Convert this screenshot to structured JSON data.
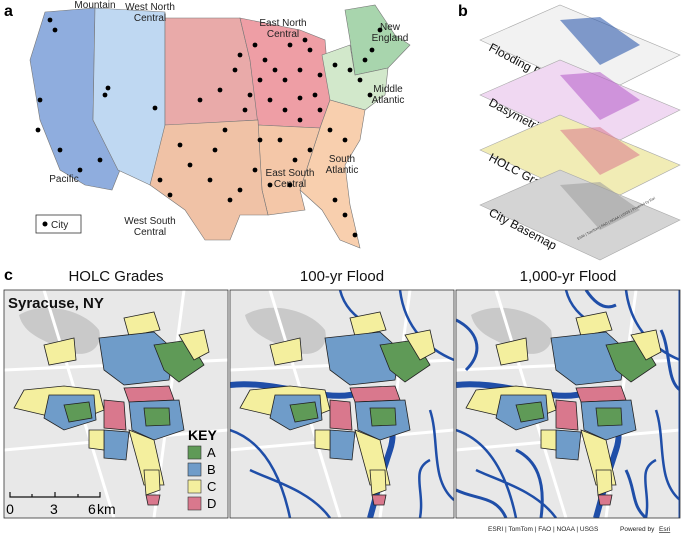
{
  "panel_a": {
    "label": "a",
    "regions": [
      {
        "name": "Pacific",
        "color": "#8fadde"
      },
      {
        "name": "Mountain",
        "color": "#bfd8f2"
      },
      {
        "name": "West North Central",
        "color": "#e9aaa9"
      },
      {
        "name": "East North Central",
        "color": "#ee9ea5"
      },
      {
        "name": "New England",
        "color": "#a8d5ad"
      },
      {
        "name": "Middle Atlantic",
        "color": "#d2e8cb"
      },
      {
        "name": "South Atlantic",
        "color": "#f8cfae"
      },
      {
        "name": "East South Central",
        "color": "#f4c7a8"
      },
      {
        "name": "West South Central",
        "color": "#f0c2a6"
      }
    ],
    "legend": "City"
  },
  "panel_b": {
    "label": "b",
    "layers": [
      "Flooding Extent",
      "Dasymetric Population",
      "HOLC Grade",
      "City Basemap"
    ],
    "attribution": "ESRI | TomTom | FAO | NOAA | USGS | Powered by Esri"
  },
  "panel_c": {
    "label": "c",
    "titles": [
      "HOLC Grades",
      "100-yr Flood",
      "1,000-yr Flood"
    ],
    "city": "Syracuse, NY",
    "key": {
      "title": "KEY",
      "items": [
        {
          "label": "A",
          "color": "#5f9a57"
        },
        {
          "label": "B",
          "color": "#6f9cc9"
        },
        {
          "label": "C",
          "color": "#f4ef9e"
        },
        {
          "label": "D",
          "color": "#d9788d"
        }
      ]
    },
    "scale": {
      "ticks": [
        "0",
        "3",
        "6"
      ],
      "unit": "km"
    },
    "attribution": "ESRI | TomTom | FAO | NOAA | USGS",
    "powered_by": "Powered by",
    "esri": "Esri"
  }
}
